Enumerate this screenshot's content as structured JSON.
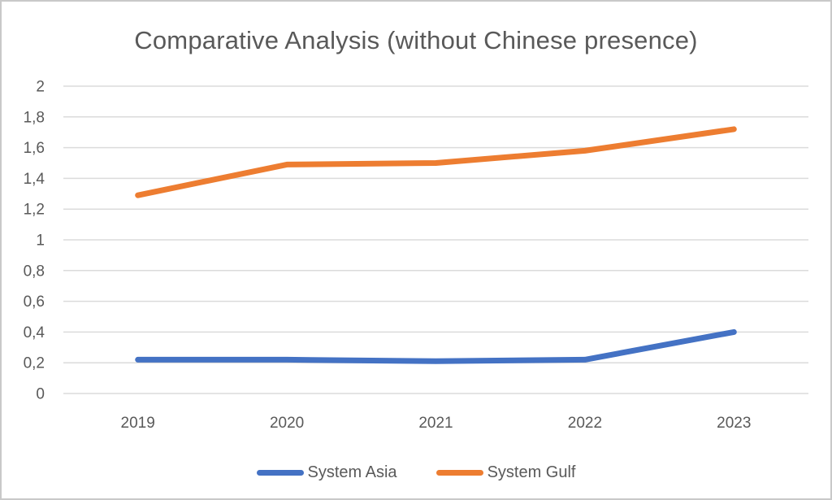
{
  "frame": {
    "background": "#ffffff",
    "border_color": "#c9c9c9",
    "text_color": "#595959",
    "gridline_color": "#dbdbdb"
  },
  "chart_data": {
    "type": "line",
    "title": "Comparative Analysis (without Chinese presence)",
    "categories": [
      "2019",
      "2020",
      "2021",
      "2022",
      "2023"
    ],
    "series": [
      {
        "name": "System Asia",
        "color": "#4472C4",
        "values": [
          0.22,
          0.22,
          0.21,
          0.22,
          0.4
        ]
      },
      {
        "name": "System Gulf",
        "color": "#ED7D31",
        "values": [
          1.29,
          1.49,
          1.5,
          1.58,
          1.72
        ]
      }
    ],
    "xlabel": "",
    "ylabel": "",
    "ylim": [
      0,
      2
    ],
    "y_tick_step": 0.2,
    "y_tick_labels": [
      "0",
      "0,2",
      "0,4",
      "0,6",
      "0,8",
      "1",
      "1,2",
      "1,4",
      "1,6",
      "1,8",
      "2"
    ],
    "grid": true,
    "legend_position": "bottom"
  }
}
